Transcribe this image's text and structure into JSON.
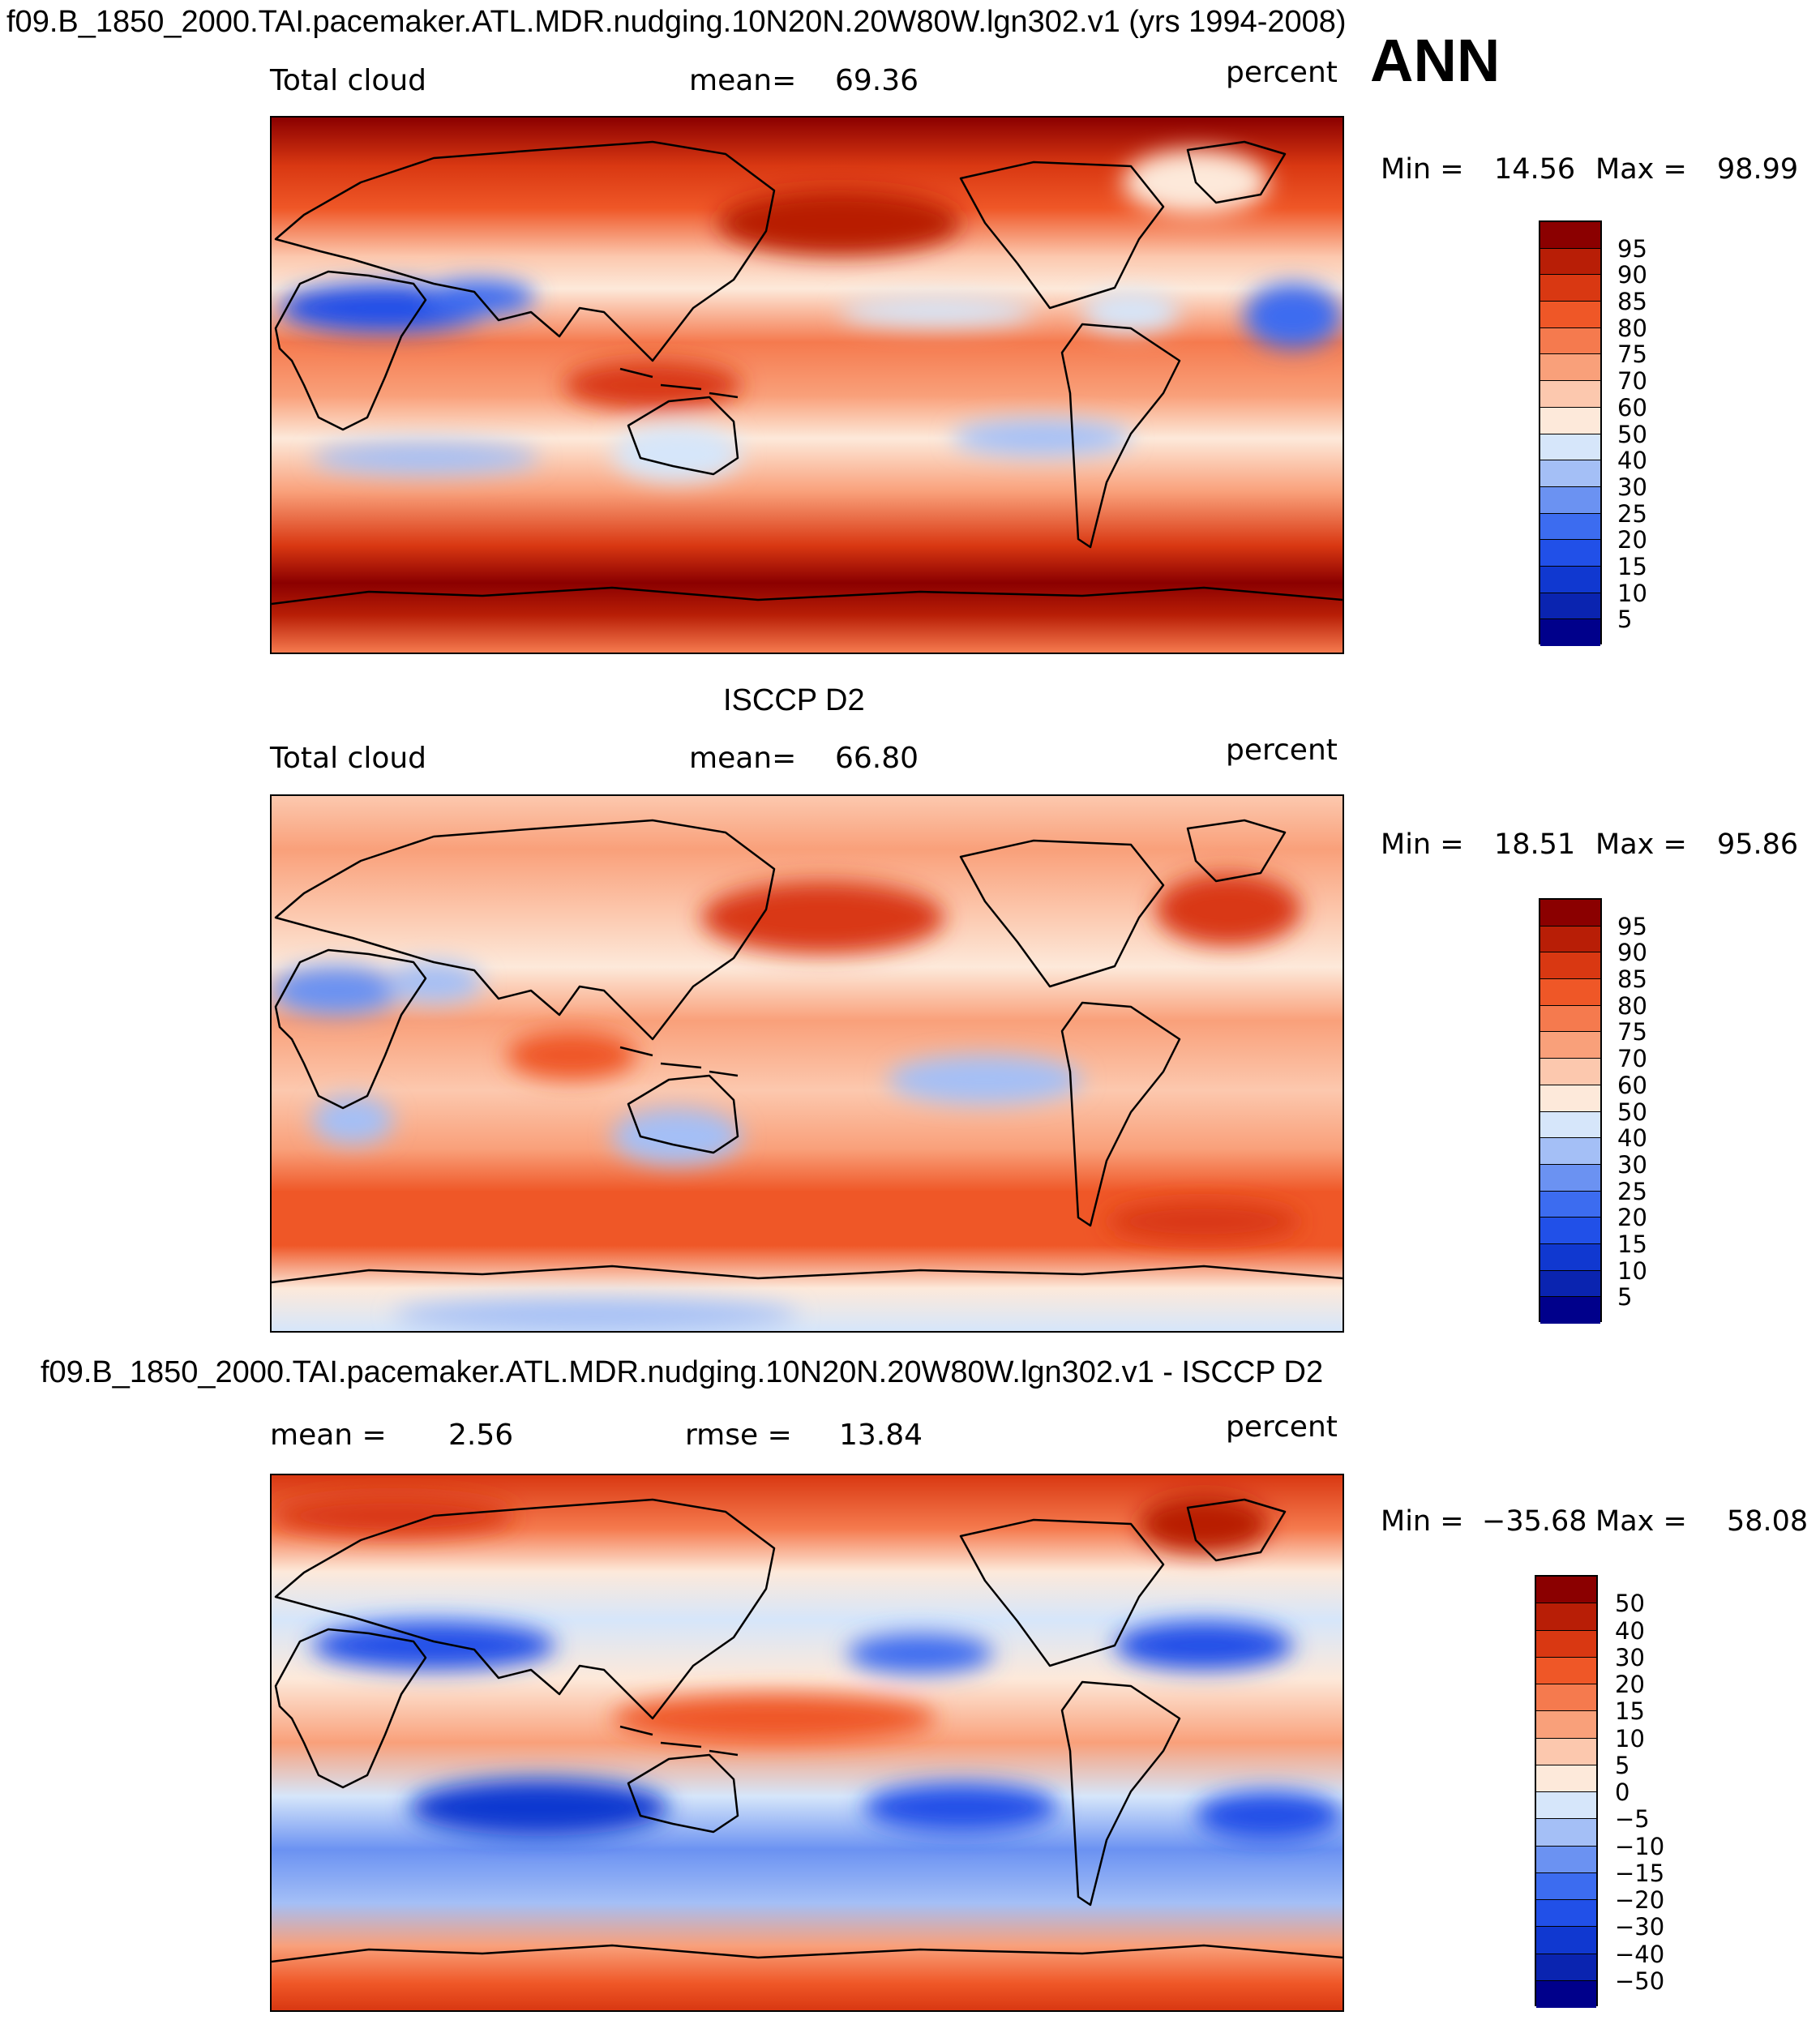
{
  "title": "f09.B_1850_2000.TAI.pacemaker.ATL.MDR.nudging.10N20N.20W80W.lgn302.v1 (yrs 1994-2008)",
  "season": "ANN",
  "colors": {
    "abs_scale": [
      "#00008b",
      "#0a24b0",
      "#1038d0",
      "#2150e8",
      "#3c6cf0",
      "#6b92f2",
      "#a4bff6",
      "#d6e6fa",
      "#fde9da",
      "#fcc8ae",
      "#f9a07a",
      "#f57a4e",
      "#ef5727",
      "#d93812",
      "#b81e06",
      "#8b0000"
    ],
    "diff_scale": [
      "#00008b",
      "#0a24b0",
      "#1038d0",
      "#2150e8",
      "#3c6cf0",
      "#6b92f2",
      "#a4bff6",
      "#d6e6fa",
      "#fde9da",
      "#fcc8ae",
      "#f9a07a",
      "#f57a4e",
      "#ef5727",
      "#d93812",
      "#b81e06",
      "#8b0000"
    ]
  },
  "chart_data": [
    {
      "type": "heatmap",
      "panel": "model",
      "variable": "Total cloud",
      "mean_label": "mean=",
      "mean": "69.36",
      "units": "percent",
      "min_label": "Min =",
      "min": "14.56",
      "max_label": "Max =",
      "max": "98.99",
      "levels": [
        "95",
        "90",
        "85",
        "80",
        "75",
        "70",
        "60",
        "50",
        "40",
        "30",
        "25",
        "20",
        "15",
        "10",
        "5"
      ],
      "regions": [
        "northern-storm-track",
        "southern-ocean-belt",
        "itcz",
        "subtropical-low-cloud",
        "sahara-arabia-clear",
        "australia-clear"
      ]
    },
    {
      "type": "heatmap",
      "panel": "observations",
      "subtitle": "ISCCP D2",
      "variable": "Total cloud",
      "mean_label": "mean=",
      "mean": "66.80",
      "units": "percent",
      "min_label": "Min =",
      "min": "18.51",
      "max_label": "Max =",
      "max": "95.86",
      "levels": [
        "95",
        "90",
        "85",
        "80",
        "75",
        "70",
        "60",
        "50",
        "40",
        "30",
        "25",
        "20",
        "15",
        "10",
        "5"
      ],
      "regions": [
        "north-pacific-stratus",
        "north-atlantic",
        "southern-ocean-belt",
        "antarctic-low",
        "sahara-clear",
        "australia-clear"
      ]
    },
    {
      "type": "heatmap",
      "panel": "difference",
      "subtitle": "f09.B_1850_2000.TAI.pacemaker.ATL.MDR.nudging.10N20N.20W80W.lgn302.v1 - ISCCP D2",
      "mean_label": "mean =",
      "mean": "2.56",
      "rmse_label": "rmse =",
      "rmse": "13.84",
      "units": "percent",
      "min_label": "Min =",
      "min": "−35.68",
      "max_label": "Max =",
      "max": "58.08",
      "levels": [
        "50",
        "40",
        "30",
        "20",
        "15",
        "10",
        "5",
        "0",
        "−5",
        "−10",
        "−15",
        "−20",
        "−30",
        "−40",
        "−50"
      ],
      "regions": [
        "arctic-positive",
        "southern-subtropics-negative",
        "sahara-negative",
        "warm-pool-positive",
        "southern-ocean-positive"
      ]
    }
  ]
}
